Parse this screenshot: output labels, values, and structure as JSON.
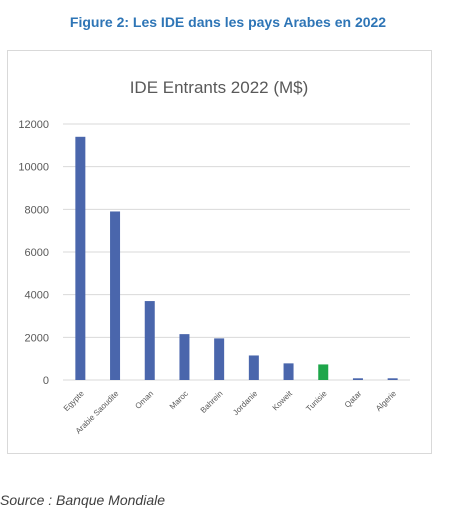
{
  "figure": {
    "title": "Figure 2: Les IDE dans les pays Arabes en 2022",
    "source": "Source : Banque Mondiale"
  },
  "colors": {
    "bar": "#4a66ac",
    "highlight": "#1ea64a",
    "grid": "#d9d9d9",
    "title_accent": "#2e75b6"
  },
  "chart_data": {
    "type": "bar",
    "title": "IDE Entrants 2022 (M$)",
    "xlabel": "",
    "ylabel": "",
    "categories": [
      "Egypte",
      "Arabie Saoudite",
      "Oman",
      "Maroc",
      "Bahrein",
      "Jordanie",
      "Koweit",
      "Tunisie",
      "Qatar",
      "Algerie"
    ],
    "values": [
      11400,
      7900,
      3700,
      2150,
      1950,
      1150,
      780,
      730,
      80,
      80
    ],
    "highlight_index": 7,
    "ylim": [
      0,
      12000
    ],
    "yticks": [
      0,
      2000,
      4000,
      6000,
      8000,
      10000,
      12000
    ],
    "grid": true,
    "legend": "none"
  }
}
